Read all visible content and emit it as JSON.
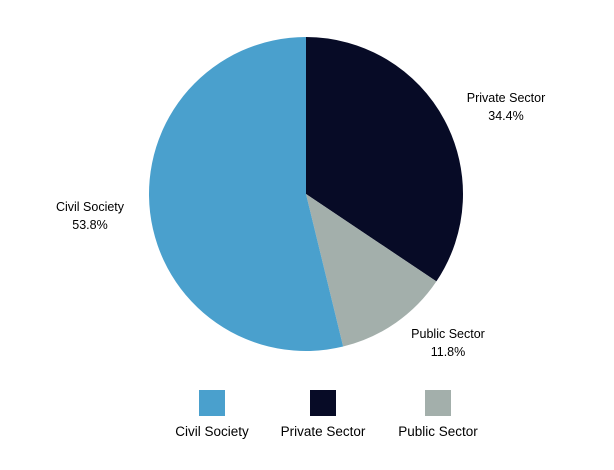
{
  "chart_data": {
    "type": "pie",
    "title": "",
    "start_angle_deg": 0,
    "direction": "clockwise",
    "legend_position": "bottom",
    "slices": [
      {
        "label": "Private Sector",
        "value": 34.4,
        "value_label": "34.4%",
        "color": "#070B26"
      },
      {
        "label": "Public Sector",
        "value": 11.8,
        "value_label": "11.8%",
        "color": "#A3AFAB"
      },
      {
        "label": "Civil Society",
        "value": 53.8,
        "value_label": "53.8%",
        "color": "#4AA0CD"
      }
    ],
    "legend": [
      {
        "label": "Civil Society",
        "color": "#4AA0CD"
      },
      {
        "label": "Private Sector",
        "color": "#070B26"
      },
      {
        "label": "Public Sector",
        "color": "#A3AFAB"
      }
    ]
  }
}
